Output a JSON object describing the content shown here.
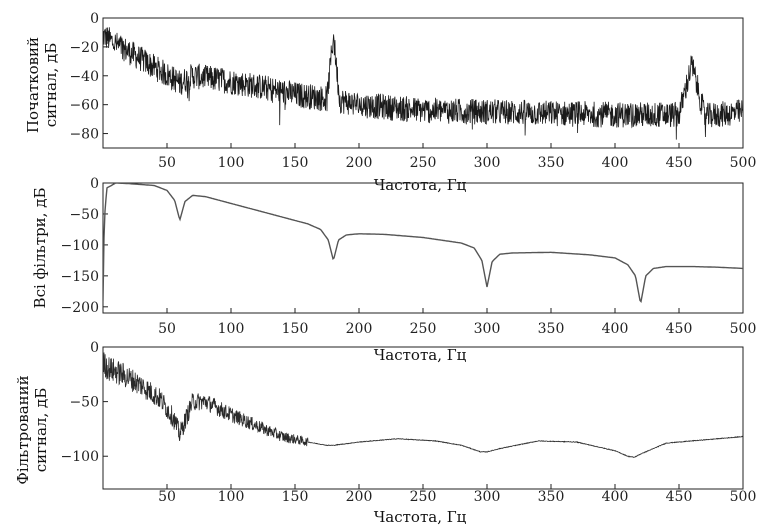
{
  "chart_data": [
    {
      "type": "line",
      "xlabel": "Частота, Гц",
      "ylabel": "Початковий сигнал, дБ",
      "xlim": [
        0,
        500
      ],
      "ylim": [
        -90,
        0
      ],
      "xticks": [
        50,
        100,
        150,
        200,
        250,
        300,
        350,
        400,
        450,
        500
      ],
      "yticks": [
        0,
        -20,
        -40,
        -60,
        -80
      ],
      "grid": false,
      "series": [
        {
          "x": [
            0,
            10,
            25,
            40,
            55,
            60,
            70,
            85,
            100,
            125,
            150,
            175,
            180,
            185,
            200,
            250,
            300,
            350,
            400,
            450,
            460,
            470,
            500
          ],
          "values": [
            -12,
            -18,
            -26,
            -34,
            -42,
            -45,
            -40,
            -42,
            -44,
            -48,
            -53,
            -56,
            -12,
            -57,
            -60,
            -64,
            -65,
            -66,
            -67,
            -67,
            -32,
            -68,
            -65
          ]
        }
      ]
    },
    {
      "type": "line",
      "xlabel": "Частота, Гц",
      "ylabel": "Всі фільтри, дБ",
      "xlim": [
        0,
        500
      ],
      "ylim": [
        -210,
        0
      ],
      "xticks": [
        50,
        100,
        150,
        200,
        250,
        300,
        350,
        400,
        450,
        500
      ],
      "yticks": [
        0,
        -50,
        -100,
        -150,
        -200
      ],
      "grid": false,
      "series": [
        {
          "x": [
            0,
            1,
            3,
            10,
            20,
            40,
            50,
            56,
            60,
            64,
            70,
            80,
            100,
            120,
            140,
            160,
            170,
            176,
            180,
            184,
            190,
            200,
            220,
            250,
            280,
            290,
            296,
            300,
            304,
            310,
            320,
            350,
            380,
            400,
            410,
            416,
            420,
            424,
            430,
            440,
            460,
            480,
            500
          ],
          "values": [
            -190,
            -60,
            -8,
            0,
            -1,
            -4,
            -12,
            -28,
            -60,
            -30,
            -20,
            -22,
            -33,
            -44,
            -55,
            -66,
            -75,
            -92,
            -125,
            -92,
            -84,
            -82,
            -83,
            -88,
            -97,
            -105,
            -125,
            -168,
            -127,
            -115,
            -113,
            -112,
            -116,
            -121,
            -132,
            -150,
            -195,
            -150,
            -138,
            -135,
            -135,
            -136,
            -138
          ]
        }
      ]
    },
    {
      "type": "line",
      "xlabel": "Частота, Гц",
      "ylabel": "Фільтрований сигнал, дБ",
      "xlim": [
        0,
        500
      ],
      "ylim": [
        -130,
        0
      ],
      "xticks": [
        50,
        100,
        150,
        200,
        250,
        300,
        350,
        400,
        450,
        500
      ],
      "yticks": [
        0,
        -50,
        -100
      ],
      "grid": false,
      "series": [
        {
          "x": [
            0,
            5,
            15,
            30,
            45,
            55,
            60,
            65,
            70,
            80,
            100,
            120,
            140,
            160,
            175,
            180,
            200,
            230,
            260,
            280,
            295,
            300,
            310,
            340,
            370,
            400,
            410,
            415,
            420,
            440,
            470,
            500
          ],
          "values": [
            -15,
            -20,
            -25,
            -35,
            -48,
            -65,
            -80,
            -65,
            -50,
            -50,
            -62,
            -72,
            -82,
            -87,
            -90,
            -90,
            -87,
            -84,
            -86,
            -90,
            -96,
            -96,
            -93,
            -86,
            -87,
            -95,
            -100,
            -101,
            -98,
            -88,
            -85,
            -82
          ]
        }
      ]
    }
  ]
}
